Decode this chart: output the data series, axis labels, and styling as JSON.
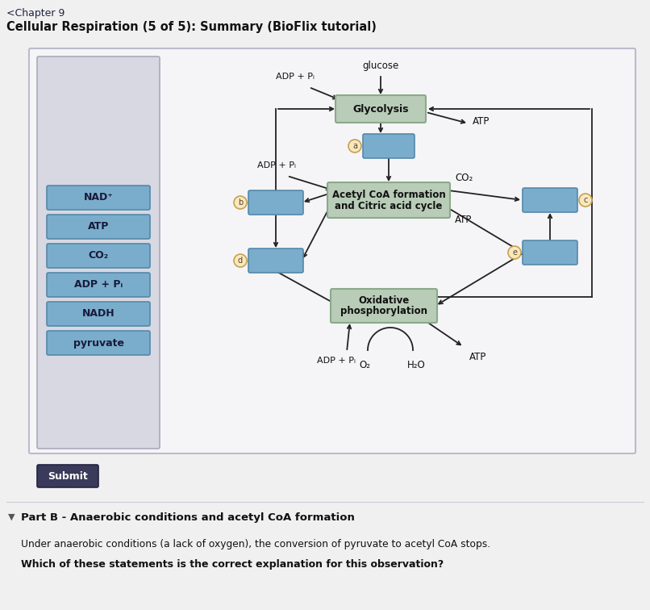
{
  "title_chapter": "<Chapter 9",
  "title_main": "Cellular Respiration (5 of 5): Summary (BioFlix tutorial)",
  "fig_bg": "#f0f0f0",
  "panel_bg": "#f5f5f7",
  "sidebar_bg": "#d8d8e2",
  "box_blue_fill": "#7aadcc",
  "box_blue_border": "#5588aa",
  "box_green_fill": "#b8ccb8",
  "box_green_border": "#8aaa8a",
  "label_items": [
    "NAD⁺",
    "ATP",
    "CO₂",
    "ADP + Pᵢ",
    "NADH",
    "pyruvate"
  ],
  "submit_btn_color": "#3a3a5a",
  "submit_text_color": "#ffffff",
  "part_b_title": "Part B - Anaerobic conditions and acetyl CoA formation",
  "part_b_text1": "Under anaerobic conditions (a lack of oxygen), the conversion of pyruvate to acetyl CoA stops.",
  "part_b_text2": "Which of these statements is the correct explanation for this observation?"
}
